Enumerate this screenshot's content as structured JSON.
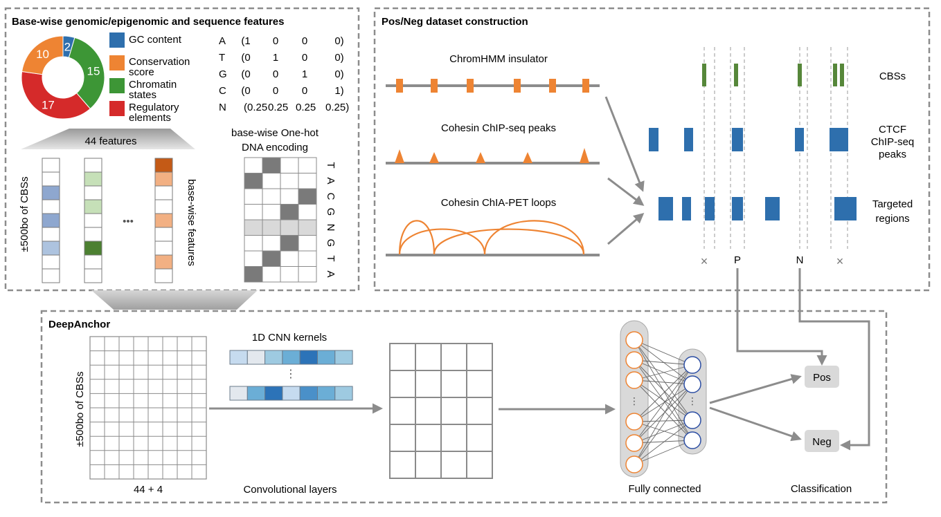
{
  "colors": {
    "blue": "#2e6fad",
    "orange": "#ee8433",
    "green": "#3d9636",
    "red": "#d52a2a",
    "darkgreen": "#56873a",
    "gray": "#8c8c8c"
  },
  "panel_features": {
    "title": "Base-wise genomic/epigenomic and sequence features",
    "donut": [
      {
        "label": "2",
        "value": 2,
        "color": "#2e6fad"
      },
      {
        "label": "15",
        "value": 15,
        "color": "#3d9636"
      },
      {
        "label": "17",
        "value": 17,
        "color": "#d52a2a"
      },
      {
        "label": "10",
        "value": 10,
        "color": "#ee8433"
      }
    ],
    "legend": [
      {
        "lines": [
          "GC content"
        ],
        "color": "#2e6fad"
      },
      {
        "lines": [
          "Conservation",
          "score"
        ],
        "color": "#ee8433"
      },
      {
        "lines": [
          "Chromatin",
          "states"
        ],
        "color": "#3d9636"
      },
      {
        "lines": [
          "Regulatory",
          "elements"
        ],
        "color": "#d52a2a"
      }
    ],
    "onehot": [
      {
        "base": "A",
        "vals": [
          "(1",
          "0",
          "0",
          "0)"
        ]
      },
      {
        "base": "T",
        "vals": [
          "(0",
          "1",
          "0",
          "0)"
        ]
      },
      {
        "base": "G",
        "vals": [
          "(0",
          "0",
          "1",
          "0)"
        ]
      },
      {
        "base": "C",
        "vals": [
          "(0",
          "0",
          "0",
          "1)"
        ]
      },
      {
        "base": "N",
        "vals": [
          "(0.25",
          "0.25",
          "0.25",
          "0.25)"
        ]
      }
    ],
    "features_label": "44 features",
    "rows_label": "±500bo of CBSs",
    "basewise_label": "base-wise features",
    "ellipsis": "•••",
    "encoding_label": [
      "base-wise One-hot",
      "DNA encoding"
    ],
    "sequence": [
      "T",
      "A",
      "C",
      "G",
      "N",
      "G",
      "T",
      "A"
    ]
  },
  "panel_posneg": {
    "title": "Pos/Neg dataset construction",
    "tracks": [
      "ChromHMM insulator",
      "Cohesin ChIP-seq peaks",
      "Cohesin ChIA-PET loops"
    ],
    "right_labels": {
      "cbs": "CBSs",
      "ctcf": [
        "CTCF",
        "ChIP-seq",
        "peaks"
      ],
      "targeted": [
        "Targeted",
        "regions"
      ]
    },
    "marks": [
      "×",
      "P",
      "N",
      "×"
    ]
  },
  "panel_deepanchor": {
    "title": "DeepAnchor",
    "rows_label": "±500bo of CBSs",
    "cols_label": "44 + 4",
    "kernels_label": "1D CNN kernels",
    "conv_label": "Convolutional layers",
    "fc_label": "Fully connected",
    "class_label": "Classification",
    "pos": "Pos",
    "neg": "Neg"
  }
}
